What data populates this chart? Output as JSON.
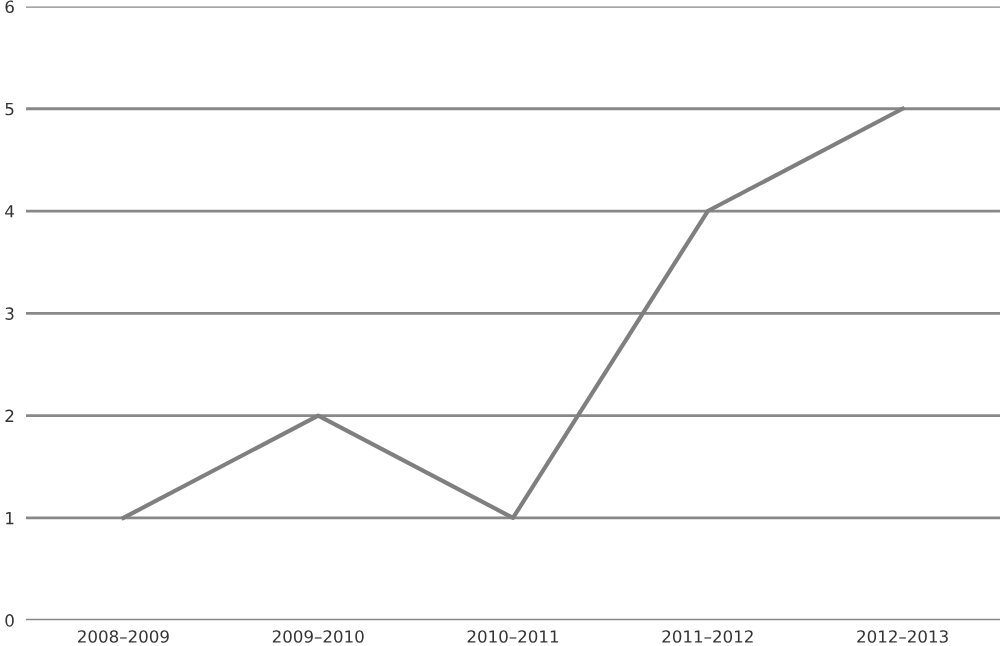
{
  "chart_data": {
    "type": "line",
    "categories": [
      "2008–2009",
      "2009–2010",
      "2010–2011",
      "2011–2012",
      "2012–2013"
    ],
    "series": [
      {
        "color": "#7f7f7f",
        "values": [
          1,
          2,
          1,
          4,
          5
        ]
      }
    ],
    "ylim": [
      0,
      6
    ],
    "yticks": [
      0,
      1,
      2,
      3,
      4,
      5,
      6
    ],
    "grid": "y",
    "legend": false,
    "marker": "none",
    "line_style": "solid"
  }
}
